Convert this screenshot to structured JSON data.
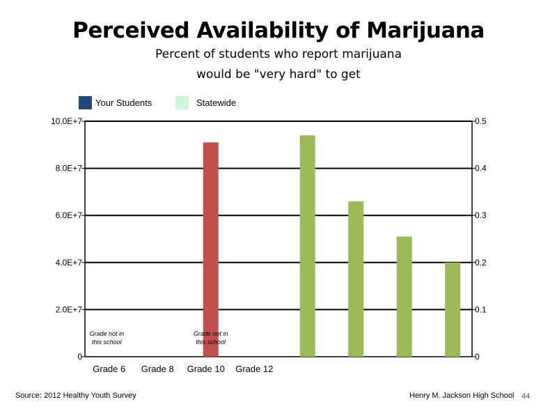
{
  "chart_data": {
    "type": "bar",
    "title": "Perceived Availability of Marijuana",
    "subtitle_lines": [
      "Percent of students who report marijuana",
      "would be \"very hard\" to get"
    ],
    "categories": [
      "Grade 6",
      "Grade 8",
      "Grade 10",
      "Grade 12"
    ],
    "series": [
      {
        "name": "Your Students",
        "axis": "left",
        "color": "#1F497D",
        "bars": [
          {
            "position": 2.6,
            "value": 91000000,
            "color": "#C0504D"
          }
        ]
      },
      {
        "name": "Statewide",
        "axis": "right",
        "color": "#CCF7DA",
        "bars": [
          {
            "position": 4.6,
            "value": 0.47,
            "color": "#9BBB59"
          },
          {
            "position": 5.6,
            "value": 0.33,
            "color": "#9BBB59"
          },
          {
            "position": 6.6,
            "value": 0.255,
            "color": "#9BBB59"
          },
          {
            "position": 7.6,
            "value": 0.2,
            "color": "#9BBB59"
          }
        ]
      }
    ],
    "y_left": {
      "range": [
        0,
        100000000
      ],
      "ticks": [
        "0",
        "2.0E+7",
        "4.0E+7",
        "6.0E+7",
        "8.0E+7",
        "10.0E+7"
      ]
    },
    "y_right": {
      "range": [
        0,
        0.5
      ],
      "ticks": [
        "0",
        "0.1",
        "0.2",
        "0.3",
        "0.4",
        "0.5"
      ]
    },
    "x_slots": 8,
    "grid": true,
    "legend_position": "top-left",
    "annotations": [
      {
        "text_lines": [
          "Grade not in",
          "this school"
        ],
        "position": 0.45
      },
      {
        "text_lines": [
          "Grade not in",
          "this school"
        ],
        "position": 2.6
      }
    ]
  },
  "footer": {
    "source": "Source: 2012 Healthy Youth Survey",
    "school": "Henry M. Jackson High School",
    "page": "44"
  }
}
